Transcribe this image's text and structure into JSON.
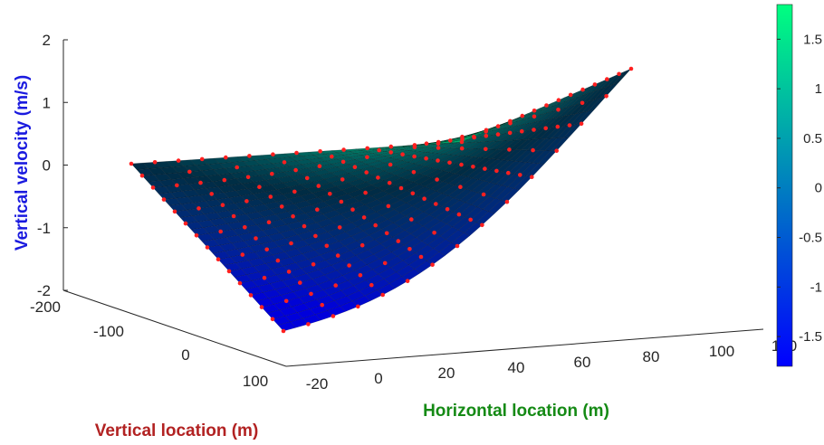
{
  "chart_data": {
    "type": "surface",
    "zlabel": "Vertical velocity (m/s)",
    "xlabel": "Horizontal location (m)",
    "ylabel": "Vertical location (m)",
    "label_colors": {
      "z": "#1a1adf",
      "x": "#158a15",
      "y": "#b22222"
    },
    "x_ticks": [
      "-20",
      "0",
      "20",
      "40",
      "60",
      "80",
      "100",
      "120"
    ],
    "y_ticks": [
      "-200",
      "-100",
      "0",
      "100"
    ],
    "z_ticks": [
      "-2",
      "-1",
      "0",
      "1",
      "2"
    ],
    "colorbar_ticks": [
      "-1.5",
      "-1",
      "-0.5",
      "0",
      "0.5",
      "1",
      "1.5"
    ],
    "xlim": [
      -20,
      120
    ],
    "ylim": [
      -200,
      100
    ],
    "zlim": [
      -2,
      2
    ],
    "colormap": [
      "#0000ff",
      "#00ff80"
    ],
    "grid": false,
    "surface_corners": [
      {
        "x": -20,
        "y": -200,
        "z": 0
      },
      {
        "x": -20,
        "y": 100,
        "z": -2.2
      },
      {
        "x": 120,
        "y": -200,
        "z": 1.5
      },
      {
        "x": 120,
        "y": 100,
        "z": 0
      }
    ],
    "marker_color": "#ff2020"
  }
}
